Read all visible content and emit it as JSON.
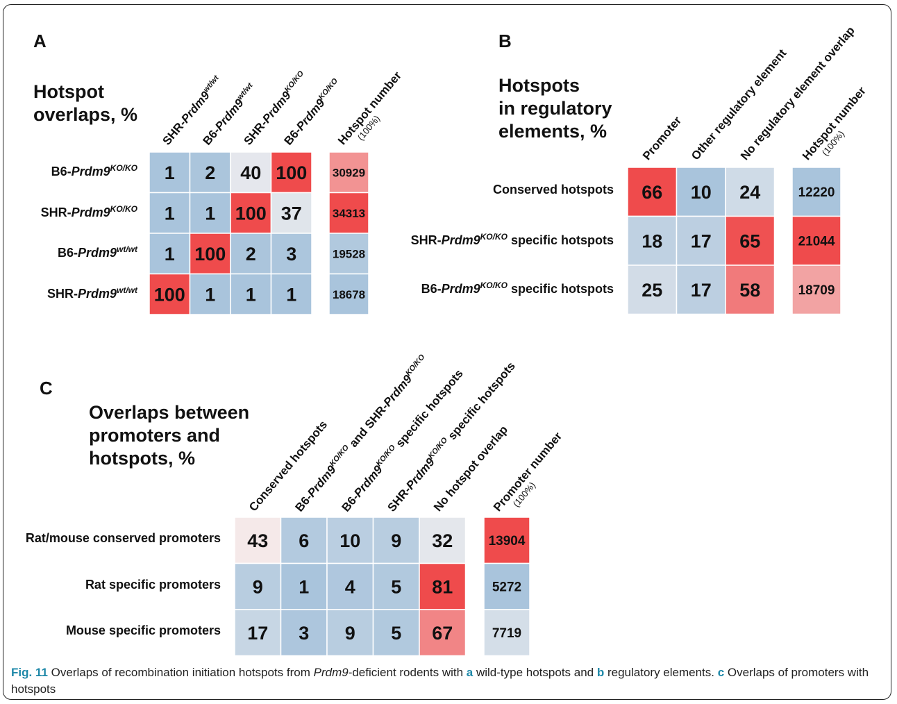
{
  "panels": [
    {
      "label": "A",
      "title_lines": [
        "Hotspot",
        "overlaps, %"
      ],
      "columns": [
        {
          "pre": "SHR-",
          "gene": "Prdm9",
          "sup": "wt/wt"
        },
        {
          "pre": "B6-",
          "gene": "Prdm9",
          "sup": "wt/wt"
        },
        {
          "pre": "SHR-",
          "gene": "Prdm9",
          "sup": "KO/KO"
        },
        {
          "pre": "B6-",
          "gene": "Prdm9",
          "sup": "KO/KO"
        }
      ],
      "count_header": "Hotspot number",
      "count_subheader": "(100%)",
      "row_labels": [
        {
          "pre": "B6-",
          "gene": "Prdm9",
          "sup": "KO/KO",
          "post": ""
        },
        {
          "pre": "SHR-",
          "gene": "Prdm9",
          "sup": "KO/KO",
          "post": ""
        },
        {
          "pre": "B6-",
          "gene": "Prdm9",
          "sup": "wt/wt",
          "post": ""
        },
        {
          "pre": "SHR-",
          "gene": "Prdm9",
          "sup": "wt/wt",
          "post": ""
        }
      ],
      "counts": [
        "30929",
        "34313",
        "19528",
        "18678"
      ],
      "values": [
        [
          1,
          2,
          40,
          100
        ],
        [
          1,
          1,
          100,
          37
        ],
        [
          1,
          100,
          2,
          3
        ],
        [
          100,
          1,
          1,
          1
        ]
      ]
    },
    {
      "label": "B",
      "title_lines": [
        "Hotspots",
        "in regulatory",
        "elements, %"
      ],
      "columns": [
        {
          "pre": "Promoter",
          "gene": "",
          "sup": ""
        },
        {
          "pre": "Other regulatory element",
          "gene": "",
          "sup": ""
        },
        {
          "pre": "No regulatory element overlap",
          "gene": "",
          "sup": ""
        }
      ],
      "count_header": "Hotspot number",
      "count_subheader": "(100%)",
      "row_labels": [
        {
          "pre": "Conserved hotspots",
          "gene": "",
          "sup": "",
          "post": ""
        },
        {
          "pre": "SHR-",
          "gene": "Prdm9",
          "sup": "KO/KO",
          "post": " specific hotspots"
        },
        {
          "pre": "B6-",
          "gene": "Prdm9",
          "sup": "KO/KO",
          "post": " specific hotspots"
        }
      ],
      "counts": [
        "12220",
        "21044",
        "18709"
      ],
      "values": [
        [
          66,
          10,
          24
        ],
        [
          18,
          17,
          65
        ],
        [
          25,
          17,
          58
        ]
      ]
    },
    {
      "label": "C",
      "title_lines": [
        "Overlaps between",
        "promoters and",
        "hotspots, %"
      ],
      "columns": [
        {
          "pre": "Conserved hotspots",
          "gene": "",
          "sup": "",
          "post": ""
        },
        {
          "pre": "B6-",
          "gene": "Prdm9",
          "sup": "KO/KO",
          "post": " and SHR-",
          "gene2": "Prdm9",
          "sup2": "KO/KO"
        },
        {
          "pre": "B6-",
          "gene": "Prdm9",
          "sup": "KO/KO",
          "post": " specific hotspots"
        },
        {
          "pre": "SHR-",
          "gene": "Prdm9",
          "sup": "KO/KO",
          "post": " specific hotspots"
        },
        {
          "pre": "No hotspot overlap",
          "gene": "",
          "sup": "",
          "post": ""
        }
      ],
      "count_header": "Promoter number",
      "count_subheader": "(100%)",
      "row_labels": [
        {
          "pre": "Rat/mouse conserved promoters",
          "gene": "",
          "sup": "",
          "post": ""
        },
        {
          "pre": "Rat specific promoters",
          "gene": "",
          "sup": "",
          "post": ""
        },
        {
          "pre": "Mouse specific promoters",
          "gene": "",
          "sup": "",
          "post": ""
        }
      ],
      "counts": [
        "13904",
        "5272",
        "7719"
      ],
      "values": [
        [
          43,
          6,
          10,
          9,
          32
        ],
        [
          9,
          1,
          4,
          5,
          81
        ],
        [
          17,
          3,
          9,
          5,
          67
        ]
      ]
    }
  ],
  "chart_data": [
    {
      "type": "heatmap",
      "title": "Hotspot overlaps, %",
      "rows": [
        "B6-Prdm9 KO/KO",
        "SHR-Prdm9 KO/KO",
        "B6-Prdm9 wt/wt",
        "SHR-Prdm9 wt/wt"
      ],
      "columns": [
        "SHR-Prdm9 wt/wt",
        "B6-Prdm9 wt/wt",
        "SHR-Prdm9 KO/KO",
        "B6-Prdm9 KO/KO"
      ],
      "values": [
        [
          1,
          2,
          40,
          100
        ],
        [
          1,
          1,
          100,
          37
        ],
        [
          1,
          100,
          2,
          3
        ],
        [
          100,
          1,
          1,
          1
        ]
      ],
      "hotspot_number": [
        30929,
        34313,
        19528,
        18678
      ]
    },
    {
      "type": "heatmap",
      "title": "Hotspots in regulatory elements, %",
      "rows": [
        "Conserved hotspots",
        "SHR-Prdm9 KO/KO specific hotspots",
        "B6-Prdm9 KO/KO specific hotspots"
      ],
      "columns": [
        "Promoter",
        "Other regulatory element",
        "No regulatory element overlap"
      ],
      "values": [
        [
          66,
          10,
          24
        ],
        [
          18,
          17,
          65
        ],
        [
          25,
          17,
          58
        ]
      ],
      "hotspot_number": [
        12220,
        21044,
        18709
      ]
    },
    {
      "type": "heatmap",
      "title": "Overlaps between promoters and hotspots, %",
      "rows": [
        "Rat/mouse conserved promoters",
        "Rat specific promoters",
        "Mouse specific promoters"
      ],
      "columns": [
        "Conserved hotspots",
        "B6-Prdm9 KO/KO and SHR-Prdm9 KO/KO",
        "B6-Prdm9 KO/KO specific hotspots",
        "SHR-Prdm9 KO/KO specific hotspots",
        "No hotspot overlap"
      ],
      "values": [
        [
          43,
          6,
          10,
          9,
          32
        ],
        [
          9,
          1,
          4,
          5,
          81
        ],
        [
          17,
          3,
          9,
          5,
          67
        ]
      ],
      "promoter_number": [
        13904,
        5272,
        7719
      ]
    }
  ],
  "caption": {
    "fig": "Fig. 11",
    "t1": " Overlaps of recombination initiation hotspots from ",
    "gene": "Prdm9",
    "t2": "-deficient rodents with ",
    "a": "a",
    "t3": " wild-type hotspots and ",
    "b": "b",
    "t4": " regulatory elements. ",
    "c": "c",
    "t5": " Overlaps of promoters with hotspots"
  },
  "colors": {
    "low": "#a9c4dc",
    "mid": "#f5f1f1",
    "high": "#ef4b4c",
    "grid": "#ffffff"
  }
}
